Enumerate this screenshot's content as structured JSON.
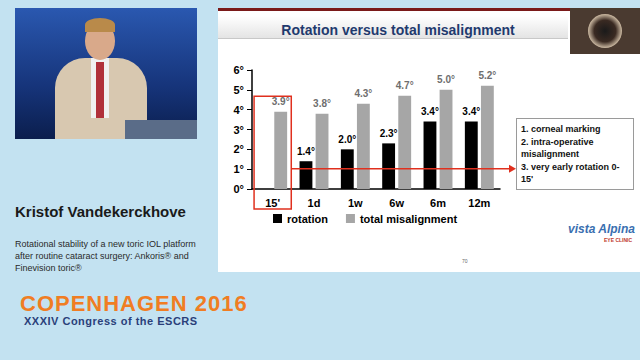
{
  "chart_data": {
    "type": "bar",
    "title": "Rotation versus total misalignment",
    "categories": [
      "15'",
      "1d",
      "1w",
      "6w",
      "6m",
      "12m"
    ],
    "series": [
      {
        "name": "rotation",
        "color": "#000000",
        "values": [
          null,
          1.4,
          2.0,
          2.3,
          3.4,
          3.4
        ],
        "value_labels": [
          null,
          "1.4°",
          "2.0°",
          "2.3°",
          "3.4°",
          "3.4°"
        ]
      },
      {
        "name": "total misalignment",
        "color": "#a6a6a6",
        "values": [
          3.9,
          3.8,
          4.3,
          4.7,
          5.0,
          5.2
        ],
        "value_labels": [
          "3.9°",
          "3.8°",
          "4.3°",
          "4.7°",
          "5.0°",
          "5.2°"
        ]
      }
    ],
    "ylim": [
      0,
      6
    ],
    "yticks": [
      {
        "value": 0,
        "label": "0°"
      },
      {
        "value": 1,
        "label": "1°"
      },
      {
        "value": 2,
        "label": "2°"
      },
      {
        "value": 3,
        "label": "3°"
      },
      {
        "value": 4,
        "label": "4°"
      },
      {
        "value": 5,
        "label": "5°"
      },
      {
        "value": 6,
        "label": "6°"
      }
    ],
    "grid": false,
    "legend": "bottom",
    "data_labels": true,
    "annotations": [
      "1. corneal marking",
      "2. intra-operative misalignment",
      "3. very early rotation 0- 15'"
    ]
  },
  "presentation": {
    "speaker": "Kristof Vandekerckhove",
    "talk_title": "Rotational stability of a new toric IOL platform after routine cataract surgery: Ankoris® and Finevision toric®",
    "congress_name": "COPENHAGEN 2016",
    "congress_subtitle": "XXXIV Congress of the ESCRS",
    "logo": "vista Alpina",
    "logo_subtitle": "EYE CLINIC",
    "slide_number": "70"
  }
}
